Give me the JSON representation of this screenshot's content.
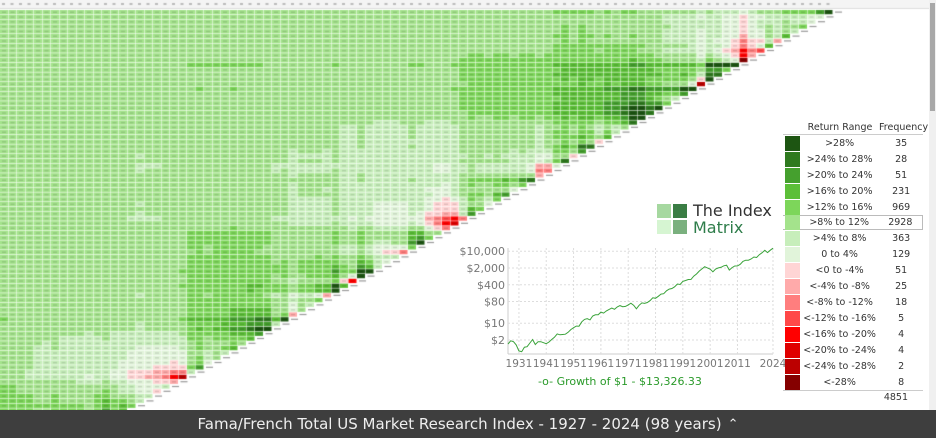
{
  "matrix": {
    "first_year": 1927,
    "last_year": 2024,
    "color_bins": [
      "#1d5512",
      "#2f7a1f",
      "#45a02e",
      "#5cbf38",
      "#7dd65a",
      "#a4e38c",
      "#c7eebb",
      "#e1f4da",
      "#ffd5d5",
      "#ffaaaa",
      "#ff7e7e",
      "#ff4848",
      "#ff0000",
      "#e00000",
      "#bb0000",
      "#850000"
    ]
  },
  "logo": {
    "line1": "The Index",
    "line2": "Matrix",
    "colors": [
      "#a6d8a0",
      "#3a7d44",
      "#d6f5d2",
      "#7ab07e"
    ]
  },
  "chart_data": {
    "type": "line",
    "title": "",
    "xlabel": "",
    "ylabel": "",
    "log_scale_y": true,
    "grid": true,
    "ylim": [
      0.5,
      14000
    ],
    "xlim": [
      1927,
      2024
    ],
    "yticks": [
      {
        "value": 10000,
        "label": "$10,000"
      },
      {
        "value": 2000,
        "label": "$2,000"
      },
      {
        "value": 400,
        "label": "$400"
      },
      {
        "value": 80,
        "label": "$80"
      },
      {
        "value": 10,
        "label": "$10"
      },
      {
        "value": 2,
        "label": "$2"
      }
    ],
    "xticks": [
      "1931",
      "1941",
      "1951",
      "1961",
      "1971",
      "1981",
      "1991",
      "2001",
      "2011",
      "2024"
    ],
    "series": [
      {
        "name": "Growth of $1 - $13,326.33",
        "color": "#3aa33a",
        "x": [
          1927,
          1928,
          1929,
          1930,
          1931,
          1932,
          1933,
          1934,
          1935,
          1936,
          1937,
          1938,
          1939,
          1940,
          1941,
          1942,
          1943,
          1944,
          1945,
          1946,
          1947,
          1948,
          1949,
          1950,
          1951,
          1952,
          1953,
          1954,
          1955,
          1956,
          1957,
          1958,
          1959,
          1960,
          1961,
          1962,
          1963,
          1964,
          1965,
          1966,
          1967,
          1968,
          1969,
          1970,
          1971,
          1972,
          1973,
          1974,
          1975,
          1976,
          1977,
          1978,
          1979,
          1980,
          1981,
          1982,
          1983,
          1984,
          1985,
          1986,
          1987,
          1988,
          1989,
          1990,
          1991,
          1992,
          1993,
          1994,
          1995,
          1996,
          1997,
          1998,
          1999,
          2000,
          2001,
          2002,
          2003,
          2004,
          2005,
          2006,
          2007,
          2008,
          2009,
          2010,
          2011,
          2012,
          2013,
          2014,
          2015,
          2016,
          2017,
          2018,
          2019,
          2020,
          2021,
          2022,
          2023,
          2024
        ],
        "y": [
          1.35,
          1.85,
          1.7,
          1.25,
          0.7,
          0.65,
          1.0,
          1.05,
          1.5,
          2.1,
          1.3,
          1.7,
          1.7,
          1.55,
          1.4,
          1.65,
          2.1,
          2.6,
          3.6,
          3.3,
          3.4,
          3.5,
          4.2,
          5.4,
          6.5,
          7.6,
          7.5,
          11.5,
          14.5,
          15.5,
          13.8,
          20,
          22.5,
          22.6,
          29,
          26.5,
          32.5,
          37.5,
          42.5,
          38,
          48,
          54,
          49,
          50,
          58,
          68,
          56,
          40,
          56,
          70,
          67,
          73,
          88,
          115,
          109,
          132,
          163,
          170,
          225,
          263,
          280,
          330,
          430,
          410,
          555,
          605,
          665,
          670,
          920,
          1120,
          1480,
          1840,
          2260,
          2020,
          1790,
          1390,
          1820,
          2010,
          2140,
          2470,
          2610,
          1640,
          2080,
          2430,
          2450,
          2840,
          3780,
          4240,
          4220,
          4760,
          5770,
          5480,
          7190,
          8710,
          10900,
          8800,
          11000,
          13326.33
        ]
      }
    ]
  },
  "legend": {
    "header_range": "Return Range",
    "header_frequency": "Frequency",
    "rows": [
      {
        "range": ">28%",
        "frequency": "35",
        "color": "#1d5512"
      },
      {
        "range": ">24% to 28%",
        "frequency": "28",
        "color": "#2f7a1f"
      },
      {
        "range": ">20% to 24%",
        "frequency": "51",
        "color": "#45a02e"
      },
      {
        "range": ">16% to 20%",
        "frequency": "231",
        "color": "#5cbf38"
      },
      {
        "range": ">12% to 16%",
        "frequency": "969",
        "color": "#7dd65a"
      },
      {
        "range": ">8% to 12%",
        "frequency": "2928",
        "color": "#a4e38c"
      },
      {
        "range": ">4% to 8%",
        "frequency": "363",
        "color": "#c7eebb"
      },
      {
        "range": "0 to 4%",
        "frequency": "129",
        "color": "#e1f4da"
      },
      {
        "range": "<0 to -4%",
        "frequency": "51",
        "color": "#ffd5d5"
      },
      {
        "range": "<-4% to -8%",
        "frequency": "25",
        "color": "#ffaaaa"
      },
      {
        "range": "<-8% to -12%",
        "frequency": "18",
        "color": "#ff7e7e"
      },
      {
        "range": "<-12% to -16%",
        "frequency": "5",
        "color": "#ff4848"
      },
      {
        "range": "<-16% to -20%",
        "frequency": "4",
        "color": "#ff0000"
      },
      {
        "range": "<-20% to -24%",
        "frequency": "4",
        "color": "#e00000"
      },
      {
        "range": "<-24% to -28%",
        "frequency": "2",
        "color": "#bb0000"
      },
      {
        "range": "<-28%",
        "frequency": "8",
        "color": "#850000"
      }
    ],
    "selected_index": 5,
    "total": "4851"
  },
  "footer": {
    "title": "Fama/French Total US Market Research Index - 1927 - 2024 (98 years)",
    "chevron_icon": "chevron-up-icon"
  }
}
